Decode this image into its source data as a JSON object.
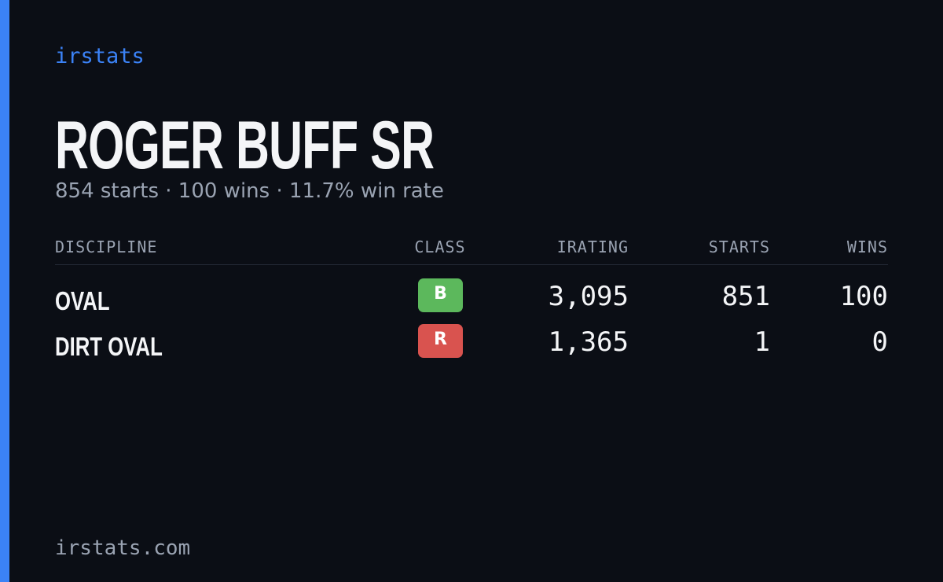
{
  "brand": "irstats",
  "title": "ROGER BUFF SR",
  "subtitle": "854 starts · 100 wins · 11.7% win rate",
  "table": {
    "header": [
      "DISCIPLINE",
      "CLASS",
      "IRATING",
      "STARTS",
      "WINS"
    ],
    "rows": [
      [
        "OVAL",
        "B",
        "3,095",
        "851",
        "100"
      ],
      [
        "DIRT OVAL",
        "R",
        "1,365",
        "1",
        "0"
      ]
    ]
  },
  "footer": "irstats.com"
}
